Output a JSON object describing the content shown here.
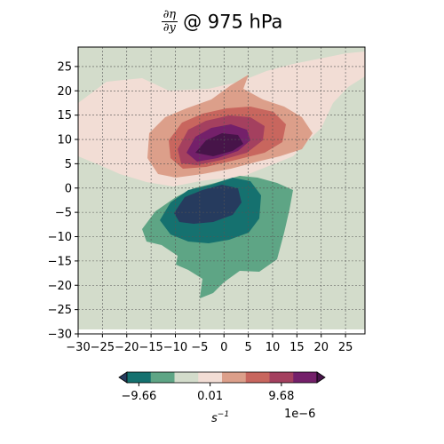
{
  "chart_data": {
    "type": "contour",
    "title": {
      "numerator": "∂η",
      "denominator": "∂y",
      "rest": "@ 975 hPa"
    },
    "xlabel": "",
    "ylabel": "",
    "xlim": [
      -30,
      29
    ],
    "ylim": [
      -30,
      29
    ],
    "x_ticks": [
      -30,
      -25,
      -20,
      -15,
      -10,
      -5,
      0,
      5,
      10,
      15,
      20,
      25
    ],
    "y_ticks": [
      -30,
      -25,
      -20,
      -15,
      -10,
      -5,
      0,
      5,
      10,
      15,
      20,
      25
    ],
    "grid": true,
    "features": [
      {
        "name": "positive maximum",
        "center": [
          0,
          8
        ],
        "peak_level": "above 9.68e-6"
      },
      {
        "name": "negative minimum",
        "center": [
          -3,
          -3
        ],
        "peak_level": "below -9.66e-6"
      }
    ],
    "colorbar": {
      "tick_labels": [
        "−9.66",
        "0.01",
        "9.68"
      ],
      "unit_label": "s⁻¹",
      "unit_base": "s",
      "unit_exp": "−1",
      "scale_label": "1e−6",
      "colors": [
        "#263b5e",
        "#15716f",
        "#5ea585",
        "#d3dccb",
        "#f2ddd5",
        "#dc9f8a",
        "#c8665e",
        "#a4405f",
        "#74206a",
        "#471449"
      ],
      "extend": "both"
    }
  }
}
